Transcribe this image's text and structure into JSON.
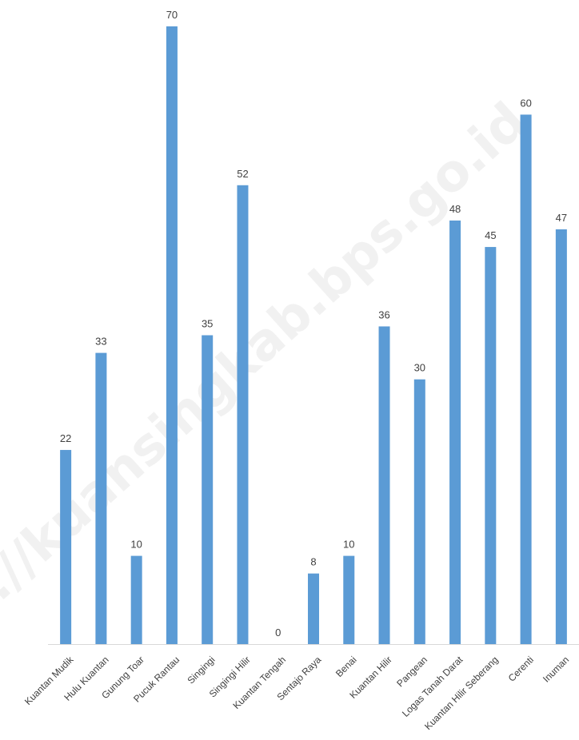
{
  "watermark": "https://kuansingkab.bps.go.id",
  "colors": {
    "bar": "#5b9bd5",
    "axis": "#d9d9d9",
    "label": "#404040"
  },
  "chart_data": {
    "type": "bar",
    "title": "",
    "xlabel": "",
    "ylabel": "",
    "ylim": [
      0,
      70
    ],
    "grid": false,
    "legend": "none",
    "categories": [
      "Kuantan Mudik",
      "Hulu Kuantan",
      "Gunung Toar",
      "Pucuk Rantau",
      "Singingi",
      "Singingi Hilir",
      "Kuantan Tengah",
      "Sentajo Raya",
      "Benai",
      "Kuantan Hilir",
      "Pangean",
      "Logas Tanah Darat",
      "Kuantan Hilir Seberang",
      "Cerenti",
      "Inuman"
    ],
    "values": [
      22,
      33,
      10,
      70,
      35,
      52,
      0,
      8,
      10,
      36,
      30,
      48,
      45,
      60,
      47
    ],
    "data_labels": [
      "22",
      "33",
      "10",
      "70",
      "35",
      "52",
      "0",
      "8",
      "10",
      "36",
      "30",
      "48",
      "45",
      "60",
      "47"
    ]
  }
}
